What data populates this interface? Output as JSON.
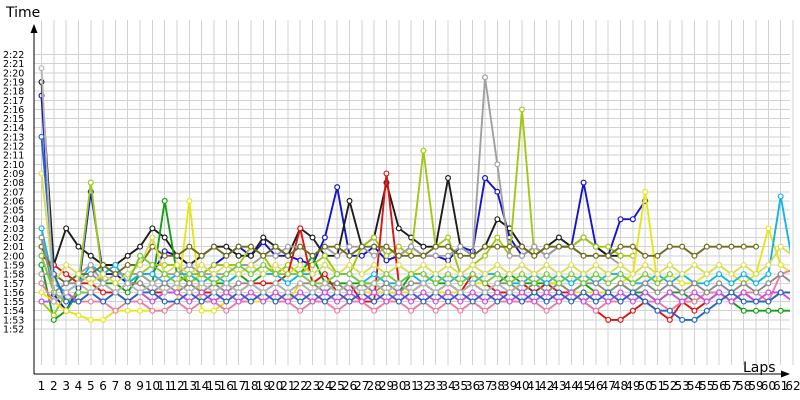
{
  "chart_data": {
    "type": "line",
    "ylabel": "Time",
    "xlabel": "Laps",
    "y_ticks": [
      "1:52",
      "1:53",
      "1:54",
      "1:55",
      "1:56",
      "1:57",
      "1:58",
      "1:59",
      "2:00",
      "2:01",
      "2:02",
      "2:03",
      "2:04",
      "2:05",
      "2:06",
      "2:07",
      "2:08",
      "2:09",
      "2:10",
      "2:11",
      "2:12",
      "2:13",
      "2:14",
      "2:15",
      "2:16",
      "2:17",
      "2:18",
      "2:19",
      "2:20",
      "2:21",
      "2:22"
    ],
    "x_ticks": [
      "1",
      "2",
      "3",
      "4",
      "5",
      "6",
      "7",
      "8",
      "9",
      "10",
      "11",
      "12",
      "13",
      "14",
      "15",
      "16",
      "17",
      "18",
      "19",
      "20",
      "21",
      "22",
      "23",
      "24",
      "25",
      "26",
      "27",
      "28",
      "29",
      "30",
      "31",
      "32",
      "33",
      "34",
      "35",
      "36",
      "37",
      "38",
      "39",
      "40",
      "41",
      "42",
      "43",
      "44",
      "45",
      "46",
      "47",
      "48",
      "49",
      "50",
      "51",
      "52",
      "53",
      "54",
      "55",
      "56",
      "57",
      "58",
      "59",
      "60",
      "61",
      "62"
    ],
    "ylim_seconds": [
      111,
      143
    ],
    "grid": true,
    "note_units": "y values are lap times in seconds (1:52 = 112 s); values above 143 s run off the top of the plot",
    "series": [
      {
        "color": "#1414d2",
        "values": [
          137.5,
          115.8,
          114,
          116.5,
          127,
          118,
          118,
          117,
          118,
          118,
          120.5,
          120,
          119,
          118,
          119,
          120,
          121,
          120,
          121.5,
          120,
          120,
          119.5,
          119,
          122,
          127.5,
          120,
          120,
          121,
          119.5,
          120,
          121,
          120,
          120,
          119.5,
          121,
          120.5,
          128.5,
          127,
          122,
          120,
          121,
          120,
          121,
          121,
          128,
          121,
          120,
          124,
          124,
          126
        ]
      },
      {
        "color": "#1e1e1e",
        "values": [
          139,
          119,
          123,
          121,
          120,
          119,
          119,
          120,
          121,
          123,
          122,
          120,
          119,
          120,
          121,
          121,
          120,
          120,
          122,
          121,
          120,
          123,
          122,
          120,
          120,
          126,
          121,
          122,
          128,
          123,
          122,
          121,
          121,
          128.5,
          121,
          120,
          121,
          124,
          123,
          121,
          120,
          121,
          122,
          121,
          122,
          121,
          120,
          120
        ]
      },
      {
        "color": "#14a014",
        "values": [
          119,
          113,
          114,
          116,
          116,
          117,
          117,
          116,
          118,
          117,
          126,
          118,
          117,
          118,
          117,
          117,
          118,
          117,
          118,
          118,
          119,
          118,
          120,
          117,
          117,
          117,
          117,
          117,
          116,
          116,
          118,
          118,
          117,
          117,
          116,
          117,
          116,
          117,
          118,
          117,
          117,
          117,
          117,
          116,
          117,
          116,
          116,
          117,
          116,
          116,
          115,
          116,
          116,
          115,
          116,
          116,
          115,
          114,
          114,
          114,
          114,
          114
        ]
      },
      {
        "color": "#a0c814",
        "values": [
          115,
          113.5,
          116,
          117,
          128,
          117,
          118,
          118,
          118,
          119,
          119,
          119,
          117,
          118,
          119,
          119,
          119,
          121,
          120,
          118,
          119,
          118,
          119,
          120,
          118,
          118,
          121,
          122,
          120,
          121,
          120,
          131.5,
          121,
          122,
          118,
          119,
          120,
          122,
          120,
          136,
          120,
          121,
          121,
          121,
          122,
          121,
          121,
          120,
          120
        ]
      },
      {
        "color": "#e6e614",
        "values": [
          116,
          115,
          114,
          113.5,
          113,
          113,
          114,
          114,
          114,
          114,
          114,
          115,
          126,
          114,
          114,
          115,
          116,
          115,
          115,
          116,
          115,
          117,
          116,
          117,
          116,
          115,
          116,
          116,
          116,
          116,
          116,
          117,
          116,
          116,
          116,
          117,
          117,
          116,
          116,
          117,
          116,
          117,
          117,
          116,
          116,
          116,
          116,
          117,
          118,
          127,
          117,
          118,
          117,
          117,
          118,
          119,
          118,
          117,
          118,
          123,
          119,
          118
        ]
      },
      {
        "color": "#dc1414",
        "values": [
          120,
          119,
          118,
          117,
          117,
          116,
          116,
          117,
          117,
          116,
          116,
          116,
          117,
          116,
          116,
          117,
          116,
          117,
          117,
          117,
          118,
          123,
          117,
          118,
          116,
          117,
          115,
          115,
          129,
          117,
          116,
          117,
          116,
          117,
          116,
          118,
          117,
          116,
          116,
          117,
          116,
          117,
          116,
          116,
          115,
          114,
          113,
          113,
          114,
          115,
          114,
          113,
          115,
          114,
          115,
          116,
          115,
          116,
          115,
          115,
          116,
          116
        ]
      },
      {
        "color": "#14b4e6",
        "values": [
          123,
          117,
          116,
          117,
          119,
          118,
          119,
          117,
          118,
          118,
          117,
          118,
          118,
          117,
          118,
          117,
          118,
          119,
          118,
          118,
          117,
          118,
          118,
          119,
          118,
          118,
          117,
          118,
          117,
          117,
          118,
          117,
          118,
          117,
          118,
          117,
          118,
          118,
          117,
          117,
          118,
          117,
          118,
          117,
          118,
          117,
          118,
          118,
          117,
          117,
          118,
          117,
          118,
          117,
          117,
          118,
          117,
          118,
          117,
          118,
          126.5,
          119
        ]
      },
      {
        "color": "#a0a0a0",
        "values": [
          118,
          118,
          117,
          118,
          119,
          117,
          118,
          118,
          118,
          117,
          118,
          118,
          119,
          118,
          118,
          118,
          119,
          119,
          120,
          120,
          121,
          121,
          120,
          121,
          120,
          121,
          121,
          120,
          121,
          120,
          121,
          120,
          120,
          120,
          121,
          120,
          139.5,
          130,
          120,
          120,
          121,
          120,
          121,
          121,
          120,
          120,
          120,
          119
        ]
      },
      {
        "color": "#f07aa0",
        "values": [
          117,
          115,
          116,
          115,
          115,
          115,
          114,
          115,
          115,
          114,
          114,
          115,
          114,
          115,
          115,
          114,
          115,
          115,
          116,
          115,
          115,
          114,
          115,
          115,
          114,
          115,
          115,
          114,
          115,
          115,
          114,
          115,
          114,
          115,
          114,
          115,
          114,
          115,
          115,
          115,
          115,
          114,
          115,
          116,
          115,
          114,
          115,
          115,
          116,
          115,
          115,
          114,
          115,
          115,
          116,
          116,
          115,
          116,
          116,
          115,
          118,
          118.5
        ]
      },
      {
        "color": "#6e6e1e",
        "values": [
          121,
          118,
          117,
          118,
          118,
          119,
          118,
          119,
          119,
          121,
          120,
          120,
          121,
          120,
          121,
          120,
          121,
          121,
          120,
          121,
          120,
          121,
          120,
          121,
          121,
          120,
          121,
          121,
          121,
          120,
          120,
          120,
          121,
          121,
          120,
          120,
          121,
          121,
          121,
          121,
          120,
          121,
          121,
          121,
          120,
          120,
          120,
          121,
          121,
          120,
          120,
          121,
          121,
          120,
          121,
          121,
          121,
          121,
          121
        ]
      },
      {
        "color": "#8c8c8c",
        "values": [
          122,
          116,
          117,
          117,
          118,
          117,
          116,
          117,
          117,
          116,
          117,
          116,
          117,
          116,
          117,
          116,
          117,
          117,
          116,
          117,
          116,
          117,
          117,
          116,
          117,
          116,
          117,
          116,
          117,
          116,
          117,
          117,
          116,
          117,
          116,
          117,
          116,
          117,
          117,
          116,
          117,
          116,
          117,
          116,
          117,
          117,
          116,
          117,
          116,
          117,
          116,
          117,
          116,
          117,
          116,
          117,
          116,
          117,
          116,
          117,
          118,
          117
        ]
      },
      {
        "color": "#dcdc50",
        "values": [
          129,
          117,
          119,
          118,
          117,
          118,
          117,
          118,
          119,
          122,
          118,
          119,
          118,
          119,
          118,
          119,
          118,
          119,
          118,
          119,
          118,
          119,
          118,
          119,
          118,
          119,
          118,
          119,
          118,
          119,
          118,
          119,
          118,
          119,
          118,
          119,
          118,
          119,
          118,
          119,
          118,
          119,
          118,
          119,
          118,
          119,
          118,
          119,
          118,
          119,
          118,
          119,
          118,
          119,
          118,
          119,
          118,
          119,
          118,
          119,
          121,
          120
        ]
      },
      {
        "color": "#78c83c",
        "values": [
          120,
          116,
          115,
          116,
          116,
          117,
          116,
          117,
          120,
          119,
          118,
          117,
          118,
          118,
          117,
          118,
          119,
          118,
          119,
          118,
          118,
          118,
          117,
          117,
          118,
          118,
          117,
          117,
          118,
          117,
          118,
          118,
          117,
          118,
          117,
          118,
          117,
          118,
          117,
          118,
          117,
          118,
          117,
          118,
          117,
          118,
          117,
          118,
          117,
          118,
          117,
          118
        ]
      },
      {
        "color": "#c850e6",
        "values": [
          115,
          115,
          116,
          115,
          116,
          115,
          116,
          115,
          116,
          115,
          116,
          116,
          115,
          116,
          115,
          116,
          115,
          116,
          115,
          116,
          115,
          116,
          115,
          116,
          115,
          116,
          115,
          116,
          115,
          116,
          115,
          116,
          115,
          116,
          115,
          116,
          115,
          116,
          115,
          116,
          115,
          116,
          115,
          116,
          115,
          116,
          115,
          116,
          115,
          116,
          115,
          116,
          115,
          116,
          115,
          116,
          115,
          116,
          115,
          116,
          116,
          115
        ]
      },
      {
        "color": "#2864c8",
        "values": [
          133,
          118,
          115,
          115,
          116,
          115,
          116,
          115,
          116,
          116,
          115,
          115,
          116,
          115,
          116,
          115,
          116,
          115,
          116,
          115,
          116,
          115,
          116,
          115,
          116,
          115,
          116,
          115,
          116,
          115,
          116,
          115,
          116,
          115,
          116,
          115,
          116,
          115,
          116,
          115,
          116,
          115,
          116,
          115,
          116,
          115,
          116,
          115,
          116,
          115,
          114,
          114,
          113,
          113,
          114,
          115,
          116,
          115,
          115,
          115,
          116,
          116
        ]
      },
      {
        "color": "#b4b4b4",
        "values": [
          140.5,
          115,
          116,
          117,
          116,
          117,
          116,
          117,
          116,
          117,
          116,
          117,
          116,
          117,
          116,
          117,
          116,
          117,
          116,
          117,
          116,
          117,
          116,
          117,
          116,
          117,
          116,
          117,
          116,
          117,
          116,
          117,
          116,
          117,
          116,
          117,
          116,
          117,
          116,
          117
        ]
      }
    ]
  }
}
